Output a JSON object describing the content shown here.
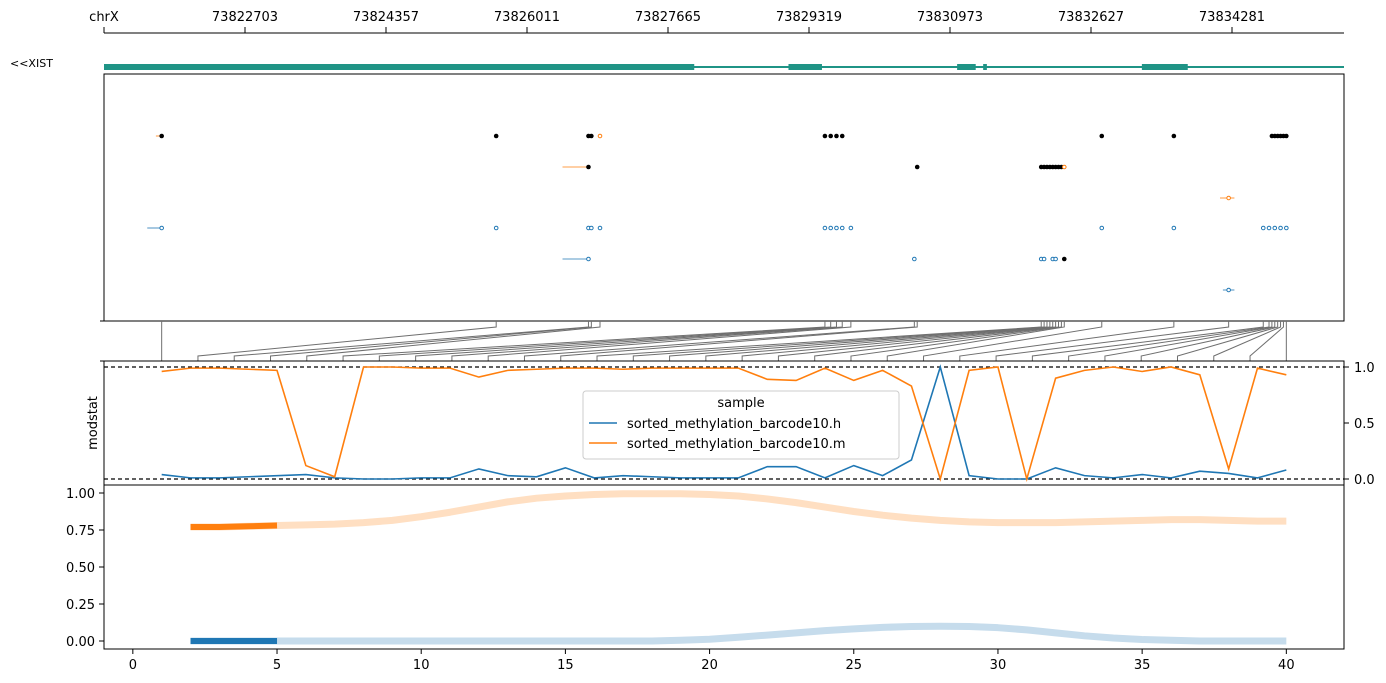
{
  "colors": {
    "gene": "#1f9486",
    "h": "#1f77b4",
    "m": "#ff7f0e",
    "m_light": "#ffdfc2",
    "h_light": "#c6dcec",
    "connector": "#6f6f6f",
    "black": "#000000"
  },
  "chart_data": [
    {
      "type": "gene_track",
      "chrom_label": "chrX",
      "genomic_ticks": [
        "73822703",
        "73824357",
        "73826011",
        "73827665",
        "73829319",
        "73830973",
        "73832627",
        "73834281"
      ],
      "gene_label": "<<XIST",
      "exons": [
        [
          0,
          0.476
        ],
        [
          0.552,
          0.579
        ],
        [
          0.688,
          0.703
        ],
        [
          0.709,
          0.712
        ],
        [
          0.837,
          0.874
        ]
      ]
    },
    {
      "type": "scatter",
      "name": "read-track",
      "rows": [
        {
          "color": "m",
          "seg": [
            0.8,
            1.0
          ],
          "points": [
            [
              1,
              "black"
            ],
            [
              12.6,
              "black"
            ],
            [
              15.8,
              "black"
            ],
            [
              15.9,
              "black"
            ],
            [
              16.2,
              "m"
            ],
            [
              24,
              "black"
            ],
            [
              24.2,
              "black"
            ],
            [
              24.4,
              "black"
            ],
            [
              24.6,
              "black"
            ],
            [
              33.6,
              "black"
            ],
            [
              36.1,
              "black"
            ],
            [
              39.5,
              "black"
            ],
            [
              39.6,
              "black"
            ],
            [
              39.7,
              "black"
            ],
            [
              39.8,
              "black"
            ],
            [
              39.9,
              "black"
            ],
            [
              40,
              "black"
            ]
          ]
        },
        {
          "color": "m",
          "seg": [
            14.9,
            15.8
          ],
          "points": [
            [
              15.8,
              "black"
            ],
            [
              27.2,
              "black"
            ],
            [
              31.5,
              "black"
            ],
            [
              31.6,
              "black"
            ],
            [
              31.7,
              "black"
            ],
            [
              31.8,
              "black"
            ],
            [
              31.9,
              "black"
            ],
            [
              32.0,
              "black"
            ],
            [
              32.1,
              "black"
            ],
            [
              32.2,
              "black"
            ],
            [
              32.3,
              "m"
            ]
          ]
        },
        {
          "color": "m",
          "seg": [
            37.7,
            38.2
          ],
          "points": [
            [
              38.0,
              "m"
            ]
          ]
        },
        {
          "color": "h",
          "seg": [
            0.5,
            1.0
          ],
          "points": [
            [
              1,
              "h"
            ],
            [
              12.6,
              "h"
            ],
            [
              15.8,
              "h"
            ],
            [
              15.9,
              "h"
            ],
            [
              16.2,
              "h"
            ],
            [
              24,
              "h"
            ],
            [
              24.2,
              "h"
            ],
            [
              24.4,
              "h"
            ],
            [
              24.6,
              "h"
            ],
            [
              24.9,
              "h"
            ],
            [
              33.6,
              "h"
            ],
            [
              36.1,
              "h"
            ],
            [
              39.2,
              "h"
            ],
            [
              39.4,
              "h"
            ],
            [
              39.6,
              "h"
            ],
            [
              39.8,
              "h"
            ],
            [
              40,
              "h"
            ]
          ]
        },
        {
          "color": "h",
          "seg": [
            14.9,
            15.8
          ],
          "points": [
            [
              15.8,
              "h"
            ],
            [
              27.1,
              "h"
            ],
            [
              31.5,
              "h"
            ],
            [
              31.6,
              "h"
            ],
            [
              31.9,
              "h"
            ],
            [
              32.0,
              "h"
            ],
            [
              32.3,
              "black"
            ]
          ]
        },
        {
          "color": "h",
          "seg": [
            37.8,
            38.2
          ],
          "points": [
            [
              38.0,
              "h"
            ]
          ]
        }
      ]
    },
    {
      "type": "line",
      "ylabel": "modstat",
      "y_ticks": [
        "0.0",
        "0.5",
        "1.0"
      ],
      "ylim": [
        -0.06,
        1.0
      ],
      "reference_lines": [
        0,
        1
      ],
      "legend_title": "sample",
      "legend_placement": "center",
      "x": [
        1,
        2,
        3,
        4,
        5,
        6,
        7,
        8,
        9,
        10,
        11,
        12,
        13,
        14,
        15,
        16,
        17,
        18,
        19,
        20,
        21,
        22,
        23,
        24,
        25,
        26,
        27,
        28,
        29,
        30,
        31,
        32,
        33,
        34,
        35,
        36,
        37,
        38,
        39,
        40
      ],
      "series": [
        {
          "name": "sorted_methylation_barcode10.h",
          "color": "h",
          "values": [
            0.04,
            0.01,
            0.01,
            0.02,
            0.03,
            0.04,
            0.01,
            0.0,
            0.0,
            0.01,
            0.01,
            0.09,
            0.03,
            0.02,
            0.1,
            0.01,
            0.03,
            0.02,
            0.01,
            0.01,
            0.01,
            0.11,
            0.11,
            0.01,
            0.12,
            0.03,
            0.17,
            1.0,
            0.03,
            0.0,
            0.0,
            0.1,
            0.03,
            0.01,
            0.04,
            0.01,
            0.07,
            0.05,
            0.01,
            0.08
          ]
        },
        {
          "name": "sorted_methylation_barcode10.m",
          "color": "m",
          "values": [
            0.96,
            0.99,
            0.99,
            0.98,
            0.97,
            0.12,
            0.02,
            1.0,
            1.0,
            0.99,
            0.99,
            0.91,
            0.97,
            0.98,
            0.99,
            0.99,
            0.98,
            0.99,
            0.99,
            0.99,
            0.99,
            0.89,
            0.88,
            0.99,
            0.88,
            0.97,
            0.83,
            0.0,
            0.97,
            1.0,
            0.0,
            0.9,
            0.97,
            1.0,
            0.96,
            1.0,
            0.93,
            0.09,
            0.99,
            0.93
          ]
        }
      ]
    },
    {
      "type": "line",
      "name": "smoothed",
      "y_ticks": [
        "0.00",
        "0.25",
        "0.50",
        "0.75",
        "1.00"
      ],
      "ylim": [
        -0.02,
        1.02
      ],
      "x_ticks": [
        "0",
        "5",
        "10",
        "15",
        "20",
        "25",
        "30",
        "35",
        "40"
      ],
      "xlim": [
        -1,
        42
      ],
      "series": [
        {
          "color": "m",
          "x": [
            2,
            3,
            4,
            5,
            6,
            7,
            8,
            9,
            10,
            11,
            12,
            13,
            14,
            15,
            16,
            17,
            18,
            19,
            20,
            21,
            22,
            23,
            24,
            25,
            26,
            27,
            28,
            29,
            30,
            31,
            32,
            33,
            34,
            35,
            36,
            37,
            38,
            39,
            40
          ],
          "values": [
            0.77,
            0.77,
            0.775,
            0.78,
            0.785,
            0.79,
            0.8,
            0.815,
            0.84,
            0.87,
            0.905,
            0.94,
            0.965,
            0.98,
            0.99,
            0.995,
            0.995,
            0.995,
            0.99,
            0.98,
            0.96,
            0.935,
            0.905,
            0.875,
            0.85,
            0.83,
            0.815,
            0.805,
            0.8,
            0.8,
            0.8,
            0.805,
            0.81,
            0.815,
            0.82,
            0.82,
            0.815,
            0.81,
            0.81
          ],
          "highlight_until": 5
        },
        {
          "color": "h",
          "x": [
            2,
            3,
            4,
            5,
            6,
            7,
            8,
            9,
            10,
            11,
            12,
            13,
            14,
            15,
            16,
            17,
            18,
            19,
            20,
            21,
            22,
            23,
            24,
            25,
            26,
            27,
            28,
            29,
            30,
            31,
            32,
            33,
            34,
            35,
            36,
            37,
            38,
            39,
            40
          ],
          "values": [
            0.0,
            0.0,
            0.0,
            0.0,
            0.0,
            0.0,
            0.0,
            0.0,
            0.0,
            0.0,
            0.0,
            0.0,
            0.0,
            0.0,
            0.0,
            0.0,
            0.0,
            0.005,
            0.012,
            0.025,
            0.04,
            0.055,
            0.07,
            0.082,
            0.092,
            0.098,
            0.1,
            0.098,
            0.09,
            0.075,
            0.055,
            0.035,
            0.02,
            0.01,
            0.005,
            0.0,
            0.0,
            0.0,
            0.0
          ],
          "highlight_until": 5
        }
      ]
    }
  ]
}
